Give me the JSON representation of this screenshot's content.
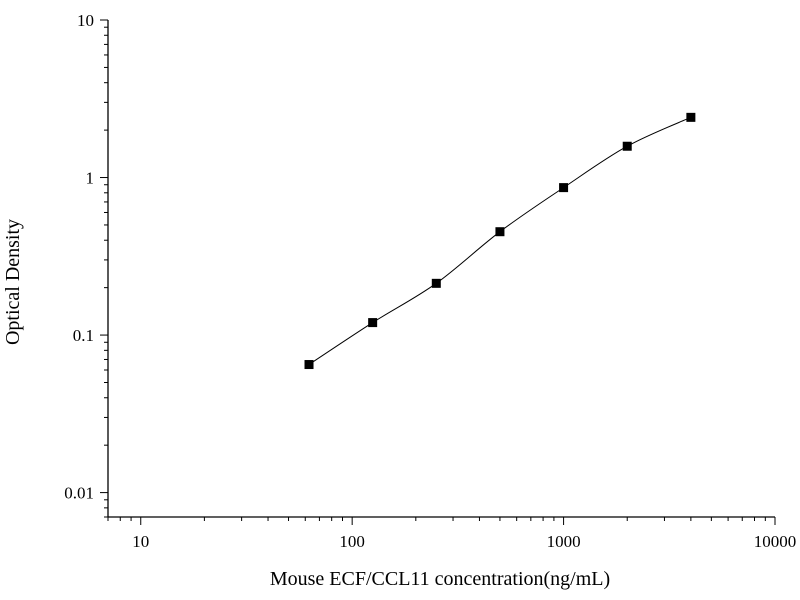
{
  "chart_data": {
    "type": "scatter",
    "title": "",
    "xlabel": "Mouse ECF/CCL11 concentration(ng/mL)",
    "ylabel": "Optical Density",
    "x_scale": "log",
    "y_scale": "log",
    "xlim": [
      7,
      10000
    ],
    "ylim": [
      0.007,
      10
    ],
    "x_ticks": [
      {
        "value": 10,
        "label": "10"
      },
      {
        "value": 100,
        "label": "100"
      },
      {
        "value": 1000,
        "label": "1000"
      },
      {
        "value": 10000,
        "label": "10000"
      }
    ],
    "y_ticks": [
      {
        "value": 0.01,
        "label": "0.01"
      },
      {
        "value": 0.1,
        "label": "0.1"
      },
      {
        "value": 1,
        "label": "1"
      },
      {
        "value": 10,
        "label": "10"
      }
    ],
    "grid": false,
    "legend": "none",
    "series": [
      {
        "marker": "square",
        "color": "#000000",
        "x": [
          62.5,
          125,
          250,
          500,
          1000,
          2000,
          4000
        ],
        "y": [
          0.065,
          0.12,
          0.213,
          0.453,
          0.863,
          1.58,
          2.41
        ]
      }
    ],
    "fit_curve": {
      "type": "smooth",
      "color": "#000000"
    }
  }
}
